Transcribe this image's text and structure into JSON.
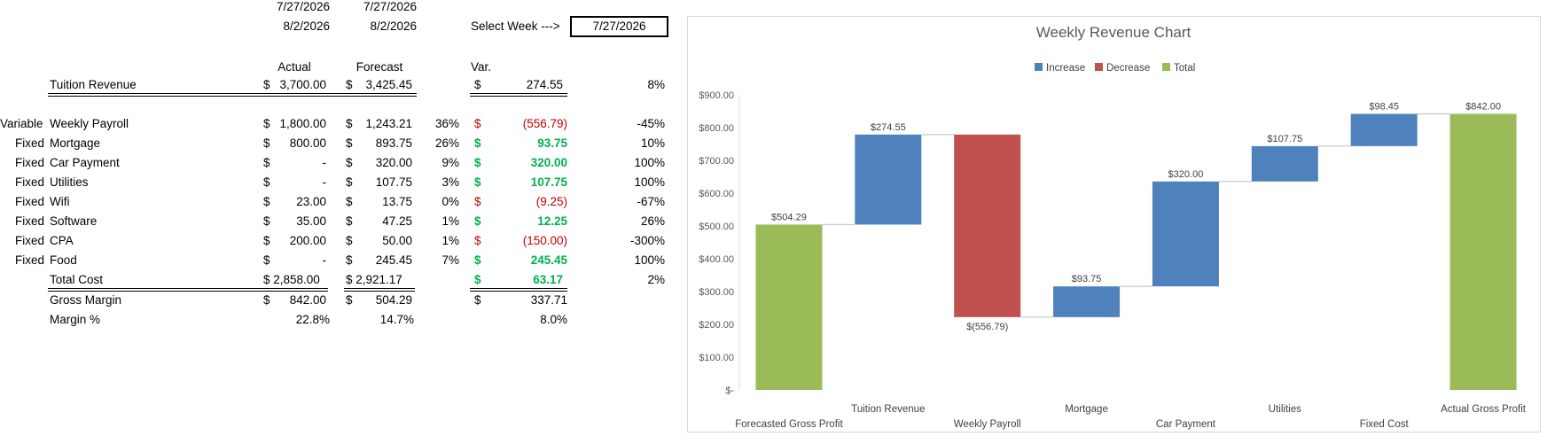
{
  "header": {
    "actual_start": "7/27/2026",
    "actual_end": "8/2/2026",
    "forecast_start": "7/27/2026",
    "forecast_end": "8/2/2026",
    "select_week_label": "Select Week --->",
    "select_week_value": "7/27/2026"
  },
  "columns": {
    "actual": "Actual",
    "forecast": "Forecast",
    "var": "Var."
  },
  "revenue": {
    "label": "Tuition Revenue",
    "actual_sym": "$",
    "actual": "3,700.00",
    "forecast_sym": "$",
    "forecast": "3,425.45",
    "var_sym": "$",
    "var": "274.55",
    "var_pct": "8%"
  },
  "costs": [
    {
      "type": "Variable",
      "label": "Weekly Payroll",
      "actual": "1,800.00",
      "forecast": "1,243.21",
      "share": "36%",
      "var": "(556.79)",
      "var_pct": "-45%",
      "sign": "neg"
    },
    {
      "type": "Fixed",
      "label": "Mortgage",
      "actual": "800.00",
      "forecast": "893.75",
      "share": "26%",
      "var": "93.75",
      "var_pct": "10%",
      "sign": "pos"
    },
    {
      "type": "Fixed",
      "label": "Car Payment",
      "actual": "-",
      "forecast": "320.00",
      "share": "9%",
      "var": "320.00",
      "var_pct": "100%",
      "sign": "pos"
    },
    {
      "type": "Fixed",
      "label": "Utilities",
      "actual": "-",
      "forecast": "107.75",
      "share": "3%",
      "var": "107.75",
      "var_pct": "100%",
      "sign": "pos"
    },
    {
      "type": "Fixed",
      "label": "Wifi",
      "actual": "23.00",
      "forecast": "13.75",
      "share": "0%",
      "var": "(9.25)",
      "var_pct": "-67%",
      "sign": "neg"
    },
    {
      "type": "Fixed",
      "label": "Software",
      "actual": "35.00",
      "forecast": "47.25",
      "share": "1%",
      "var": "12.25",
      "var_pct": "26%",
      "sign": "pos"
    },
    {
      "type": "Fixed",
      "label": "CPA",
      "actual": "200.00",
      "forecast": "50.00",
      "share": "1%",
      "var": "(150.00)",
      "var_pct": "-300%",
      "sign": "neg"
    },
    {
      "type": "Fixed",
      "label": "Food",
      "actual": "-",
      "forecast": "245.45",
      "share": "7%",
      "var": "245.45",
      "var_pct": "100%",
      "sign": "pos"
    }
  ],
  "currency_symbol": "$",
  "total_cost": {
    "label": "Total Cost",
    "actual": "$ 2,858.00",
    "forecast": "$ 2,921.17",
    "var_sym": "$",
    "var": "63.17",
    "var_pct": "2%"
  },
  "gross_margin": {
    "label": "Gross Margin",
    "actual_sym": "$",
    "actual": "842.00",
    "forecast_sym": "$",
    "forecast": "504.29",
    "var_sym": "$",
    "var": "337.71"
  },
  "margin_pct": {
    "label": "Margin %",
    "actual": "22.8%",
    "forecast": "14.7%",
    "var": "8.0%"
  },
  "colors": {
    "increase": "#4f81bd",
    "decrease": "#c0504d",
    "total": "#9bbb59",
    "negative_text": "#c00000",
    "positive_text": "#00b050"
  },
  "chart_data": {
    "type": "waterfall",
    "title": "Weekly Revenue Chart",
    "legend": [
      "Increase",
      "Decrease",
      "Total"
    ],
    "legend_position": "top",
    "ylim": [
      0,
      900
    ],
    "yticks": [
      0,
      100,
      200,
      300,
      400,
      500,
      600,
      700,
      800,
      900
    ],
    "ytick_labels": [
      "$-",
      "$100.00",
      "$200.00",
      "$300.00",
      "$400.00",
      "$500.00",
      "$600.00",
      "$700.00",
      "$800.00",
      "$900.00"
    ],
    "categories": [
      "Forecasted Gross Profit",
      "Tuition Revenue",
      "Weekly Payroll",
      "Mortgage",
      "Car Payment",
      "Utilities",
      "Fixed Cost",
      "Actual Gross Profit"
    ],
    "bars": [
      {
        "kind": "total",
        "start": 0,
        "end": 504.29,
        "label": "$504.29"
      },
      {
        "kind": "increase",
        "start": 504.29,
        "end": 778.84,
        "label": "$274.55"
      },
      {
        "kind": "decrease",
        "start": 778.84,
        "end": 222.05,
        "label": "$(556.79)"
      },
      {
        "kind": "increase",
        "start": 222.05,
        "end": 315.8,
        "label": "$93.75"
      },
      {
        "kind": "increase",
        "start": 315.8,
        "end": 635.8,
        "label": "$320.00"
      },
      {
        "kind": "increase",
        "start": 635.8,
        "end": 743.55,
        "label": "$107.75"
      },
      {
        "kind": "increase",
        "start": 743.55,
        "end": 842.0,
        "label": "$98.45"
      },
      {
        "kind": "total",
        "start": 0,
        "end": 842.0,
        "label": "$842.00"
      }
    ]
  }
}
